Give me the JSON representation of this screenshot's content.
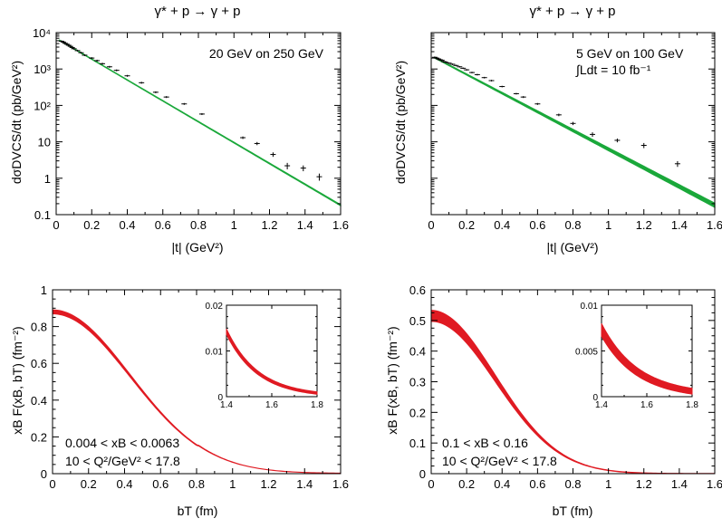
{
  "chart_data": [
    {
      "type": "scatter",
      "title": "γ* + p → γ + p",
      "annotation": "20 GeV on 250 GeV",
      "xlabel": "|t| (GeV²)",
      "ylabel": "dσDVCS/dt (pb/GeV²)",
      "xlim": [
        0,
        1.6
      ],
      "ylim": [
        0.1,
        10000
      ],
      "log_y": true,
      "grid": false,
      "xticks": [
        "0",
        "0.2",
        "0.4",
        "0.6",
        "0.8",
        "1",
        "1.2",
        "1.4",
        "1.6"
      ],
      "yticks": [
        "0.1",
        "1",
        "10",
        "10²",
        "10³",
        "10⁴"
      ],
      "band_color": "#1aa83a",
      "fit": {
        "a": 7000,
        "b": 6.6
      },
      "band_width": [
        0.01,
        0.03
      ],
      "series": [
        {
          "x": [
            0.03,
            0.04,
            0.05,
            0.06,
            0.07,
            0.08,
            0.09,
            0.1,
            0.12,
            0.14,
            0.16,
            0.2,
            0.23,
            0.26,
            0.3,
            0.34,
            0.4,
            0.48,
            0.56,
            0.62,
            0.72,
            0.82,
            1.05,
            1.13,
            1.22,
            1.3,
            1.39,
            1.48
          ],
          "y": [
            5800,
            5500,
            5100,
            4800,
            4500,
            4200,
            3900,
            3600,
            3200,
            2800,
            2400,
            2000,
            1700,
            1400,
            1150,
            920,
            650,
            420,
            230,
            170,
            110,
            58,
            13,
            9,
            4.5,
            2.2,
            1.9,
            1.1
          ],
          "err": [
            0.06,
            0.06,
            0.06,
            0.06,
            0.06,
            0.06,
            0.06,
            0.06,
            0.06,
            0.06,
            0.06,
            0.06,
            0.06,
            0.06,
            0.06,
            0.06,
            0.06,
            0.06,
            0.06,
            0.06,
            0.06,
            0.06,
            0.08,
            0.1,
            0.14,
            0.2,
            0.18,
            0.22
          ]
        }
      ]
    },
    {
      "type": "scatter",
      "title": "γ* + p → γ + p",
      "annotation": "5 GeV on 100 GeV",
      "annotation2": "∫Ldt = 10 fb⁻¹",
      "xlabel": "|t| (GeV²)",
      "ylabel": "dσDVCS/dt (pb/GeV²)",
      "xlim": [
        0,
        1.6
      ],
      "ylim": [
        0.1,
        10000
      ],
      "log_y": true,
      "grid": false,
      "xticks": [
        "0",
        "0.2",
        "0.4",
        "0.6",
        "0.8",
        "1",
        "1.2",
        "1.4",
        "1.6"
      ],
      "yticks": [],
      "band_color": "#1aa83a",
      "fit": {
        "a": 2300,
        "b": 5.9
      },
      "band_width": [
        0.02,
        0.13
      ],
      "series": [
        {
          "x": [
            0.02,
            0.03,
            0.04,
            0.05,
            0.06,
            0.07,
            0.08,
            0.1,
            0.12,
            0.14,
            0.16,
            0.18,
            0.2,
            0.23,
            0.26,
            0.3,
            0.34,
            0.4,
            0.48,
            0.52,
            0.6,
            0.72,
            0.8,
            0.91,
            1.05,
            1.2,
            1.39
          ],
          "y": [
            2100,
            2000,
            1900,
            1800,
            1750,
            1600,
            1550,
            1450,
            1350,
            1250,
            1150,
            1050,
            950,
            800,
            700,
            580,
            480,
            330,
            210,
            170,
            110,
            55,
            32,
            16,
            11,
            8,
            2.5
          ],
          "err": [
            0.05,
            0.05,
            0.05,
            0.05,
            0.05,
            0.05,
            0.05,
            0.05,
            0.05,
            0.05,
            0.05,
            0.05,
            0.05,
            0.05,
            0.05,
            0.05,
            0.05,
            0.05,
            0.05,
            0.06,
            0.06,
            0.08,
            0.1,
            0.14,
            0.12,
            0.16,
            0.18
          ]
        }
      ]
    },
    {
      "type": "area",
      "xlabel": "bT (fm)",
      "ylabel": "xB F(xB, bT) (fm⁻²)",
      "xlim": [
        0,
        1.6
      ],
      "ylim": [
        0,
        1
      ],
      "grid": false,
      "xticks": [
        "0",
        "0.2",
        "0.4",
        "0.6",
        "0.8",
        "1",
        "1.2",
        "1.4",
        "1.6"
      ],
      "yticks": [
        "0",
        "0.2",
        "0.4",
        "0.6",
        "0.8",
        "1"
      ],
      "annotation": "0.004 < xB < 0.0063",
      "annotation2": "10 < Q²/GeV² < 17.8",
      "band_color": "#e01a22",
      "model": {
        "amp": 0.88,
        "sigma": 0.43,
        "tail": 0.012
      },
      "band_half_width": 0.011,
      "inset": {
        "xlim": [
          1.4,
          1.8
        ],
        "ylim": [
          0,
          0.02
        ],
        "xticks": [
          "1.4",
          "1.6",
          "1.8"
        ],
        "yticks": [
          "0",
          "0.01",
          "0.02"
        ],
        "start": 0.0142,
        "end": 0.0008,
        "band_half_width": 0.0006
      }
    },
    {
      "type": "area",
      "xlabel": "bT (fm)",
      "ylabel": "xB F(xB, bT) (fm⁻²)",
      "xlim": [
        0,
        1.6
      ],
      "ylim": [
        0,
        0.6
      ],
      "grid": false,
      "xticks": [
        "0",
        "0.2",
        "0.4",
        "0.6",
        "0.8",
        "1",
        "1.2",
        "1.4",
        "1.6"
      ],
      "yticks": [
        "0",
        "0.1",
        "0.2",
        "0.3",
        "0.4",
        "0.5",
        "0.6"
      ],
      "annotation": "0.1 < xB < 0.16",
      "annotation2": "10 < Q²/GeV² < 17.8",
      "band_color": "#e01a22",
      "model": {
        "amp": 0.515,
        "sigma": 0.36,
        "tail": 0.0
      },
      "band_half_width": 0.018,
      "inset": {
        "xlim": [
          1.4,
          1.8
        ],
        "ylim": [
          0,
          0.01
        ],
        "xticks": [
          "1.4",
          "1.6",
          "1.8"
        ],
        "yticks": [
          "0",
          "0.005",
          "0.01"
        ],
        "start": 0.0073,
        "end": 0.0006,
        "band_half_width": 0.0007
      }
    }
  ]
}
